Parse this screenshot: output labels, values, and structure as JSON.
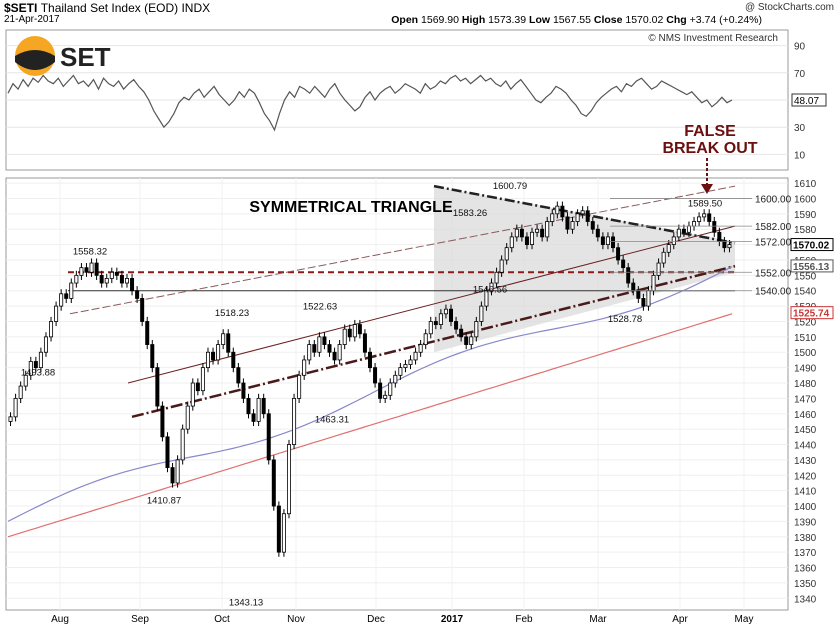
{
  "header": {
    "symbol": "$SETI",
    "name": "Thailand Set Index (EOD)",
    "exchange": "INDX",
    "date": "21-Apr-2017",
    "source": "@ StockCharts.com",
    "open_label": "Open",
    "open": "1569.90",
    "high_label": "High",
    "high": "1573.39",
    "low_label": "Low",
    "low": "1567.55",
    "close_label": "Close",
    "close": "1570.02",
    "chg_label": "Chg",
    "chg": "+3.74 (+0.24%)"
  },
  "logo": {
    "text": "SET",
    "colors": {
      "sun": "#f5a623",
      "dark": "#222222"
    }
  },
  "copyright": "© NMS Investment Research",
  "chart_data": [
    {
      "type": "line",
      "name": "rsi",
      "ylim": [
        0,
        100
      ],
      "y_ticks": [
        10,
        30,
        50,
        70,
        90
      ],
      "current_value": "48.07",
      "x": [
        0,
        5,
        10,
        15,
        20,
        25,
        30,
        35,
        40,
        45,
        50,
        55,
        60,
        65,
        70,
        75,
        80,
        85,
        90,
        95,
        100,
        105,
        110,
        115,
        120,
        125,
        130,
        135,
        140,
        145,
        150,
        155,
        160,
        165,
        170,
        175,
        180,
        185,
        190,
        195,
        200,
        205,
        210,
        215,
        220,
        225,
        230,
        235,
        240,
        245,
        250,
        255,
        260,
        265,
        270,
        275,
        280,
        285,
        290,
        295,
        300,
        305,
        310,
        315,
        320,
        325,
        330,
        335,
        340,
        345,
        350,
        355,
        360,
        365,
        370,
        375,
        380,
        385,
        390,
        395,
        400,
        405,
        410,
        415,
        420,
        425,
        430,
        435,
        440,
        445,
        450,
        455,
        460,
        465,
        470,
        475,
        480,
        485,
        490,
        495,
        500,
        505,
        510,
        515,
        520,
        525,
        530,
        535,
        540,
        545,
        550,
        555,
        560,
        565,
        570,
        575,
        580,
        585,
        590,
        595,
        600,
        605,
        610,
        615,
        620,
        625,
        630,
        635,
        640,
        645,
        650,
        655,
        660,
        665,
        670,
        675,
        680,
        685,
        690,
        695,
        700,
        705,
        710,
        715,
        720
      ],
      "values": [
        55,
        62,
        58,
        65,
        60,
        66,
        63,
        68,
        64,
        62,
        66,
        60,
        64,
        68,
        62,
        64,
        60,
        65,
        58,
        66,
        62,
        60,
        64,
        58,
        62,
        65,
        60,
        56,
        50,
        42,
        36,
        30,
        34,
        40,
        48,
        52,
        50,
        55,
        58,
        52,
        56,
        60,
        54,
        50,
        46,
        50,
        56,
        52,
        58,
        55,
        48,
        40,
        35,
        28,
        40,
        50,
        56,
        52,
        60,
        58,
        55,
        60,
        56,
        52,
        58,
        62,
        55,
        50,
        46,
        42,
        45,
        52,
        56,
        50,
        55,
        58,
        60,
        55,
        58,
        62,
        60,
        58,
        55,
        62,
        58,
        60,
        64,
        62,
        66,
        68,
        64,
        66,
        62,
        65,
        68,
        64,
        66,
        62,
        60,
        64,
        58,
        62,
        65,
        60,
        55,
        50,
        48,
        52,
        55,
        60,
        58,
        55,
        50,
        46,
        40,
        38,
        42,
        48,
        52,
        55,
        58,
        60,
        56,
        62,
        60,
        64,
        66,
        62,
        58,
        60,
        64,
        62,
        60,
        58,
        56,
        54,
        56,
        52,
        48,
        50,
        45,
        48,
        52,
        48,
        50
      ]
    },
    {
      "type": "candlestick",
      "name": "price",
      "ylim": [
        1335,
        1612
      ],
      "y_ticks": [
        1340,
        1350,
        1360,
        1370,
        1380,
        1390,
        1400,
        1410,
        1420,
        1430,
        1440,
        1450,
        1460,
        1470,
        1480,
        1490,
        1500,
        1510,
        1520,
        1530,
        1540,
        1550,
        1560,
        1570,
        1580,
        1590,
        1600,
        1610
      ],
      "x_labels": [
        "Aug",
        "Sep",
        "Oct",
        "Nov",
        "Dec",
        "2017",
        "Feb",
        "Mar",
        "Apr",
        "May"
      ],
      "last_value_labels": [
        {
          "value": "1570.02",
          "color": "#000000"
        },
        {
          "value": "1556.13",
          "color": "#555555"
        },
        {
          "value": "1525.74",
          "color": "#cc3333"
        }
      ],
      "resistance_levels": [
        {
          "value": "1600.00"
        },
        {
          "value": "1582.00"
        },
        {
          "value": "1572.00"
        },
        {
          "value": "1552.00"
        },
        {
          "value": "1540.00"
        }
      ],
      "peak_labels": [
        {
          "value": "1493.88"
        },
        {
          "value": "1558.32"
        },
        {
          "value": "1410.87"
        },
        {
          "value": "1518.23"
        },
        {
          "value": "1343.13"
        },
        {
          "value": "1522.63"
        },
        {
          "value": "1463.31"
        },
        {
          "value": "1546.56"
        },
        {
          "value": "1583.26"
        },
        {
          "value": "1600.79"
        },
        {
          "value": "1528.78"
        },
        {
          "value": "1589.50"
        }
      ],
      "annotations": {
        "pattern": "SYMMETRICAL TRIANGLE",
        "alert_line1": "FALSE",
        "alert_line2": "BREAK OUT",
        "alert_color": "#6b0f0f"
      },
      "closes": [
        1458,
        1470,
        1478,
        1485,
        1494,
        1490,
        1500,
        1510,
        1520,
        1530,
        1538,
        1535,
        1545,
        1550,
        1555,
        1552,
        1558,
        1550,
        1545,
        1548,
        1552,
        1550,
        1545,
        1548,
        1540,
        1535,
        1520,
        1505,
        1490,
        1465,
        1445,
        1425,
        1415,
        1430,
        1450,
        1465,
        1480,
        1475,
        1490,
        1500,
        1495,
        1505,
        1512,
        1500,
        1490,
        1480,
        1470,
        1460,
        1455,
        1470,
        1460,
        1430,
        1400,
        1370,
        1395,
        1440,
        1470,
        1485,
        1495,
        1505,
        1500,
        1510,
        1505,
        1500,
        1495,
        1505,
        1515,
        1510,
        1518,
        1512,
        1500,
        1490,
        1480,
        1470,
        1472,
        1480,
        1485,
        1490,
        1492,
        1495,
        1500,
        1505,
        1512,
        1520,
        1518,
        1525,
        1528,
        1520,
        1515,
        1510,
        1505,
        1510,
        1520,
        1530,
        1540,
        1545,
        1552,
        1560,
        1568,
        1575,
        1580,
        1575,
        1570,
        1578,
        1580,
        1575,
        1585,
        1590,
        1595,
        1588,
        1580,
        1585,
        1590,
        1592,
        1585,
        1580,
        1575,
        1570,
        1575,
        1568,
        1560,
        1555,
        1545,
        1540,
        1535,
        1530,
        1540,
        1550,
        1558,
        1565,
        1570,
        1575,
        1580,
        1578,
        1582,
        1585,
        1588,
        1590,
        1585,
        1578,
        1572,
        1568,
        1570
      ]
    }
  ]
}
